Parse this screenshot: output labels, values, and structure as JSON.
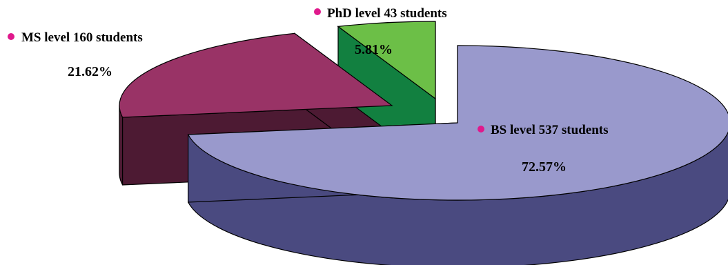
{
  "chart_data": {
    "type": "pie",
    "style": "3d-exploded",
    "title": "",
    "series": [
      {
        "slices": [
          {
            "label": "BS level 537 students",
            "count": 537,
            "percent_label": "72.57%",
            "value": 72.57,
            "color": "#9999cc",
            "side_color": "#4a4a80"
          },
          {
            "label": "MS level 160 students",
            "count": 160,
            "percent_label": "21.62%",
            "value": 21.62,
            "color": "#993366",
            "side_color": "#4d1a33"
          },
          {
            "label": "PhD level 43 students",
            "count": 43,
            "percent_label": "5.81%",
            "value": 5.81,
            "color": "#6cbf47",
            "side_color": "#128040"
          }
        ]
      }
    ],
    "bullet_color": "#e0198c",
    "legend": "none"
  }
}
